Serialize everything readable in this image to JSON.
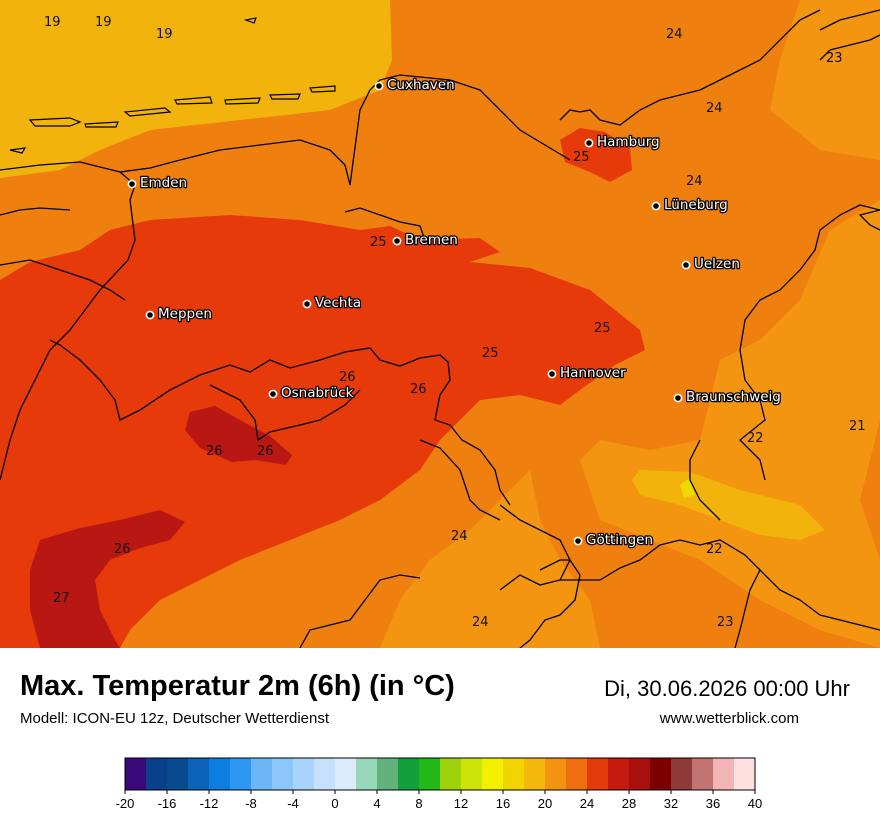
{
  "title": "Max. Temperatur 2m (6h) (in °C)",
  "model": "Modell: ICON-EU 12z, Deutscher Wetterdienst",
  "datetime": "Di, 30.06.2026 00:00 Uhr",
  "website": "www.wetterblick.com",
  "cities": [
    {
      "name": "Cuxhaven"
    },
    {
      "name": "Hamburg"
    },
    {
      "name": "Emden"
    },
    {
      "name": "Lüneburg"
    },
    {
      "name": "Bremen"
    },
    {
      "name": "Uelzen"
    },
    {
      "name": "Vechta"
    },
    {
      "name": "Meppen"
    },
    {
      "name": "Hannover"
    },
    {
      "name": "Osnabrück"
    },
    {
      "name": "Braunschweig"
    },
    {
      "name": "Göttingen"
    }
  ],
  "values": [
    "19",
    "19",
    "19",
    "24",
    "24",
    "25",
    "24",
    "25",
    "25",
    "25",
    "26",
    "26",
    "26",
    "26",
    "22",
    "21",
    "24",
    "22",
    "26",
    "27",
    "24",
    "23",
    "23"
  ],
  "legend": {
    "ticks": [
      "-20",
      "-16",
      "-12",
      "-8",
      "-4",
      "0",
      "4",
      "8",
      "12",
      "16",
      "20",
      "24",
      "28",
      "32",
      "36",
      "40"
    ],
    "colors": [
      "#3a0a7a",
      "#0a3f8a",
      "#084a8e",
      "#0a62b9",
      "#0b7ee0",
      "#2e97f2",
      "#6cb6f7",
      "#8cc6f8",
      "#a9d3fa",
      "#c6e1fb",
      "#dcebfc",
      "#98d8b8",
      "#62b27e",
      "#13a03c",
      "#23b818",
      "#9ed30b",
      "#cde40a",
      "#f0f000",
      "#f2d400",
      "#f3b70e",
      "#f39310",
      "#ef6f10",
      "#e23a0a",
      "#c3190f",
      "#a81010",
      "#7c0000",
      "#8e3a3a",
      "#c47373",
      "#f2b4b4",
      "#fde0e0"
    ]
  },
  "colors": {
    "c19": "#f2b40c",
    "c21": "#f39510",
    "c23": "#ef7a12",
    "c25": "#e63a0a",
    "c27": "#b81714"
  }
}
